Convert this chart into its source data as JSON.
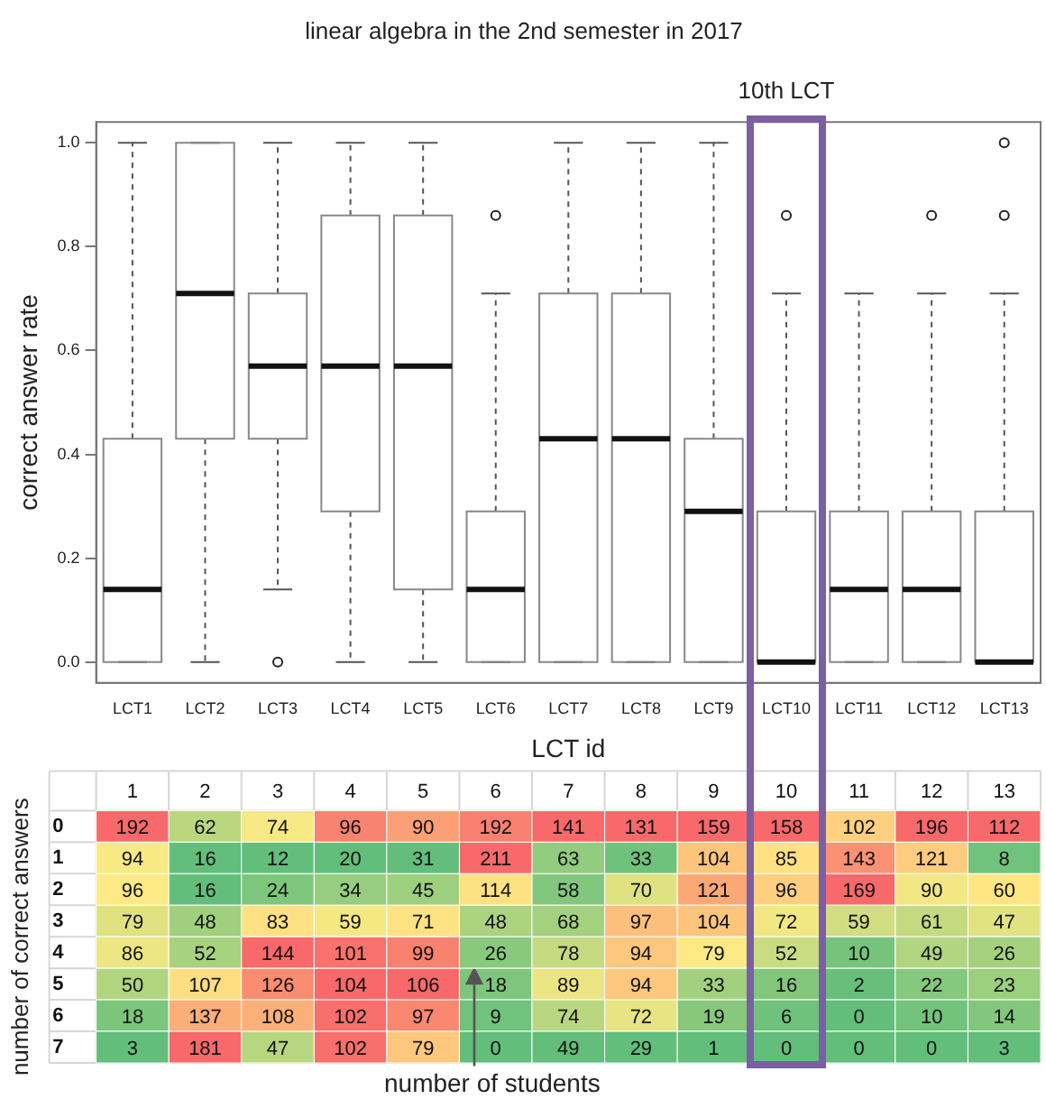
{
  "chart_data": [
    {
      "type": "box",
      "title": "linear algebra in the 2nd semester in 2017",
      "xlabel": "LCT id",
      "ylabel": "correct answer rate",
      "categories": [
        "LCT1",
        "LCT2",
        "LCT3",
        "LCT4",
        "LCT5",
        "LCT6",
        "LCT7",
        "LCT8",
        "LCT9",
        "LCT10",
        "LCT11",
        "LCT12",
        "LCT13"
      ],
      "boxes": [
        {
          "low": 0,
          "q1": 0,
          "median": 0.14,
          "q3": 0.43,
          "high": 1
        },
        {
          "low": 0,
          "q1": 0.43,
          "median": 0.71,
          "q3": 1,
          "high": 1
        },
        {
          "low": 0.14,
          "q1": 0.43,
          "median": 0.57,
          "q3": 0.71,
          "high": 1,
          "outliers": [
            0
          ]
        },
        {
          "low": 0,
          "q1": 0.29,
          "median": 0.57,
          "q3": 0.86,
          "high": 1
        },
        {
          "low": 0,
          "q1": 0.14,
          "median": 0.57,
          "q3": 0.86,
          "high": 1
        },
        {
          "low": 0,
          "q1": 0,
          "median": 0.14,
          "q3": 0.29,
          "high": 0.71,
          "outliers": [
            0.86
          ]
        },
        {
          "low": 0,
          "q1": 0,
          "median": 0.43,
          "q3": 0.71,
          "high": 1
        },
        {
          "low": 0,
          "q1": 0,
          "median": 0.43,
          "q3": 0.71,
          "high": 1
        },
        {
          "low": 0,
          "q1": 0,
          "median": 0.29,
          "q3": 0.43,
          "high": 1
        },
        {
          "low": 0,
          "q1": 0,
          "median": 0,
          "q3": 0.29,
          "high": 0.71,
          "outliers": [
            0.86
          ]
        },
        {
          "low": 0,
          "q1": 0,
          "median": 0.14,
          "q3": 0.29,
          "high": 0.71
        },
        {
          "low": 0,
          "q1": 0,
          "median": 0.14,
          "q3": 0.29,
          "high": 0.71,
          "outliers": [
            0.86
          ]
        },
        {
          "low": 0,
          "q1": 0,
          "median": 0,
          "q3": 0.29,
          "high": 0.71,
          "outliers": [
            0.86,
            1
          ]
        }
      ],
      "ylim": [
        -0.04,
        1.04
      ],
      "yticks": [
        {
          "value": 0,
          "label": "0.0"
        },
        {
          "value": 0.2,
          "label": "0.2"
        },
        {
          "value": 0.4,
          "label": "0.4"
        },
        {
          "value": 0.6,
          "label": "0.6"
        },
        {
          "value": 0.8,
          "label": "0.8"
        },
        {
          "value": 1,
          "label": "1.0"
        }
      ],
      "grid": false,
      "legend": false,
      "annotations": [
        "10th LCT"
      ]
    },
    {
      "type": "heatmap",
      "ylabel": "number of correct answers",
      "categories": [
        "1",
        "2",
        "3",
        "4",
        "5",
        "6",
        "7",
        "8",
        "9",
        "10",
        "11",
        "12",
        "13"
      ],
      "y_categories": [
        "0",
        "1",
        "2",
        "3",
        "4",
        "5",
        "6",
        "7"
      ],
      "cells": [
        [
          192,
          62,
          74,
          96,
          90,
          192,
          141,
          131,
          159,
          158,
          102,
          196,
          112
        ],
        [
          94,
          16,
          12,
          20,
          31,
          211,
          63,
          33,
          104,
          85,
          143,
          121,
          8
        ],
        [
          96,
          16,
          24,
          34,
          45,
          114,
          58,
          70,
          121,
          96,
          169,
          90,
          60
        ],
        [
          79,
          48,
          83,
          59,
          71,
          48,
          68,
          97,
          104,
          72,
          59,
          61,
          47
        ],
        [
          86,
          52,
          144,
          101,
          99,
          26,
          78,
          94,
          79,
          52,
          10,
          49,
          26
        ],
        [
          50,
          107,
          126,
          104,
          106,
          18,
          89,
          94,
          33,
          16,
          2,
          22,
          23
        ],
        [
          18,
          137,
          108,
          102,
          97,
          9,
          74,
          72,
          19,
          6,
          0,
          10,
          14
        ],
        [
          3,
          181,
          47,
          102,
          79,
          0,
          49,
          29,
          1,
          0,
          0,
          0,
          3
        ]
      ],
      "colors": [
        "#63be7b",
        "#ffeb84",
        "#f8696b"
      ],
      "data_labels": true,
      "annotations": [
        "number of students"
      ]
    }
  ]
}
